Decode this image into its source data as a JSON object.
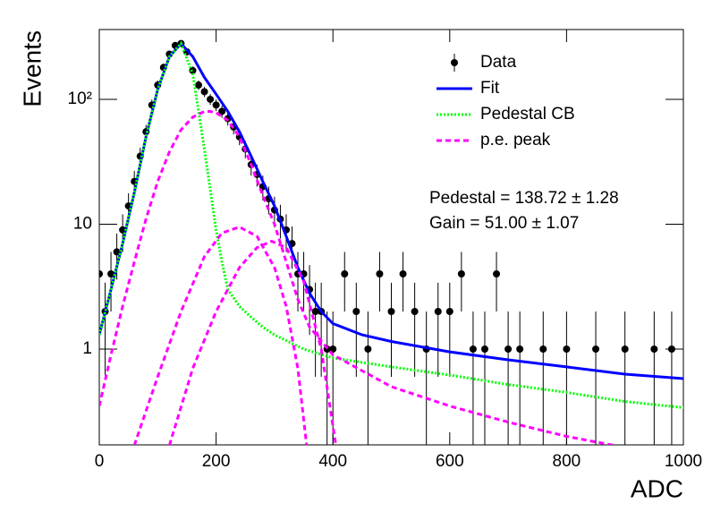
{
  "chart_data": {
    "type": "line",
    "xlabel": "ADC",
    "ylabel": "Events",
    "xlim": [
      0,
      1000
    ],
    "xticks": [
      0,
      200,
      400,
      600,
      800,
      1000
    ],
    "ylim": [
      0.171,
      362
    ],
    "log_y": true,
    "yticks": [
      1,
      10,
      {
        "value": 100,
        "label": "10²"
      }
    ],
    "legend": "upper right",
    "annotations": [
      "Pedestal = 138.72 ± 1.28",
      "Gain = 51.00 ± 1.07"
    ],
    "series": [
      {
        "name": "Data",
        "color": "#000000",
        "style": "points",
        "x": [
          0,
          10,
          20,
          30,
          40,
          50,
          60,
          70,
          80,
          90,
          100,
          110,
          120,
          130,
          140,
          150,
          160,
          170,
          180,
          190,
          200,
          210,
          220,
          230,
          240,
          250,
          260,
          270,
          280,
          290,
          300,
          310,
          320,
          330,
          340,
          350,
          360,
          370,
          380,
          390,
          400,
          420,
          440,
          460,
          480,
          500,
          520,
          540,
          560,
          580,
          600,
          620,
          640,
          660,
          680,
          700,
          720,
          760,
          800,
          850,
          900,
          950,
          980
        ],
        "values": [
          4,
          2,
          4,
          6,
          9,
          14,
          22,
          35,
          55,
          90,
          130,
          180,
          230,
          270,
          280,
          240,
          170,
          130,
          115,
          100,
          90,
          80,
          70,
          60,
          50,
          40,
          30,
          25,
          20,
          16,
          13,
          11,
          9,
          7,
          4,
          4,
          3,
          2,
          2,
          1,
          1,
          4,
          2,
          1,
          4,
          2,
          4,
          2,
          1,
          2,
          2,
          4,
          1,
          1,
          4,
          1,
          1,
          1,
          1,
          1,
          1,
          1,
          1
        ],
        "errors": [
          2,
          1.4,
          2,
          2.4,
          3,
          3.7,
          4.7,
          5.9,
          7.4,
          9.5,
          11.4,
          13.4,
          15.2,
          16.4,
          16.7,
          15.5,
          13,
          11.4,
          10.7,
          10,
          9.5,
          8.9,
          8.4,
          7.7,
          7.1,
          6.3,
          5.5,
          5,
          4.5,
          4,
          3.6,
          3.3,
          3,
          2.6,
          2,
          2,
          1.7,
          1.4,
          1.4,
          1,
          1,
          2,
          1.4,
          1,
          2,
          1.4,
          2,
          1.4,
          1,
          1.4,
          1.4,
          2,
          1,
          1,
          2,
          1,
          1,
          1,
          1,
          1,
          1,
          1,
          1
        ]
      },
      {
        "name": "Fit",
        "color": "#0000ff",
        "style": "solid",
        "x": [
          0,
          20,
          40,
          60,
          80,
          100,
          120,
          140,
          160,
          180,
          200,
          220,
          240,
          260,
          280,
          300,
          320,
          340,
          360,
          380,
          400,
          450,
          500,
          600,
          700,
          800,
          900,
          1000
        ],
        "values": [
          1.3,
          3,
          7,
          18,
          50,
          120,
          220,
          280,
          220,
          150,
          110,
          80,
          55,
          35,
          22,
          14,
          8,
          4.5,
          2.8,
          2,
          1.6,
          1.3,
          1.15,
          0.95,
          0.82,
          0.72,
          0.63,
          0.58
        ]
      },
      {
        "name": "Pedestal CB",
        "color": "#00ff00",
        "style": "dotted",
        "x": [
          0,
          20,
          40,
          60,
          80,
          100,
          120,
          140,
          160,
          180,
          200,
          210,
          220,
          240,
          260,
          280,
          300,
          350,
          400,
          500,
          600,
          700,
          800,
          900,
          1000
        ],
        "values": [
          1.3,
          3,
          7,
          18,
          50,
          120,
          220,
          280,
          160,
          40,
          9,
          5,
          3,
          2.2,
          1.8,
          1.5,
          1.3,
          1,
          0.85,
          0.72,
          0.62,
          0.52,
          0.45,
          0.38,
          0.34
        ]
      },
      {
        "name": "p.e. peak",
        "color": "#ff00ff",
        "style": "dashed",
        "x": [
          0,
          20,
          40,
          60,
          80,
          100,
          120,
          140,
          160,
          180,
          190,
          200,
          220,
          240,
          260,
          280,
          300,
          320,
          340,
          360,
          400,
          500,
          600,
          700,
          800,
          880
        ],
        "values": [
          0.35,
          0.9,
          2.2,
          5,
          11,
          22,
          38,
          57,
          72,
          80,
          80,
          78,
          68,
          50,
          30,
          17,
          10,
          5,
          2.5,
          1.5,
          0.9,
          0.5,
          0.35,
          0.26,
          0.2,
          0.17
        ]
      },
      {
        "color": "#ff00ff",
        "style": "dashed",
        "x": [
          60,
          100,
          140,
          180,
          210,
          240,
          270,
          300,
          320,
          340,
          355
        ],
        "values": [
          0.17,
          0.6,
          2,
          5.5,
          8.5,
          9.5,
          8,
          4.5,
          2.2,
          0.7,
          0.17
        ]
      },
      {
        "color": "#ff00ff",
        "style": "dashed",
        "x": [
          120,
          160,
          200,
          240,
          270,
          295,
          320,
          350,
          380,
          405
        ],
        "values": [
          0.17,
          0.7,
          2,
          4.5,
          6.5,
          7.3,
          6.5,
          3.5,
          1,
          0.17
        ]
      }
    ]
  }
}
